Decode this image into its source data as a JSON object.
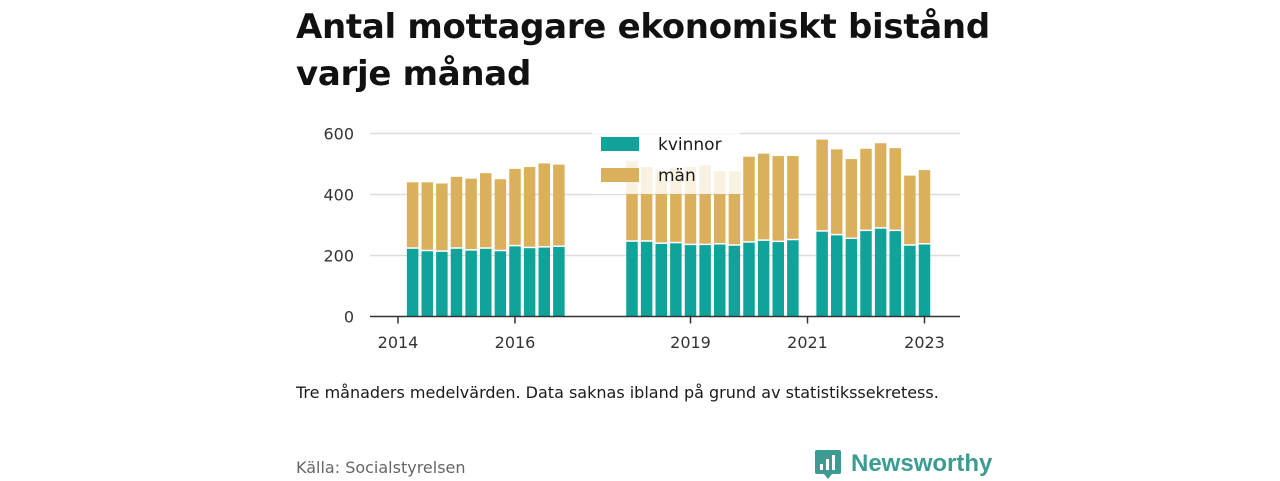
{
  "title": "Antal mottagare ekonomiskt bistånd varje månad",
  "note": "Tre månaders medelvärden. Data saknas ibland på grund av statistikssekretess.",
  "source": "Källa: Socialstyrelsen",
  "brand": "Newsworthy",
  "colors": {
    "kvinnor": "#0fa39a",
    "man": "#dbb05c",
    "brand": "#3d9c91",
    "grid": "#dddddd",
    "axis": "#333333"
  },
  "chart_data": {
    "type": "bar",
    "stacked": true,
    "ylim": [
      0,
      600
    ],
    "yticks": [
      0,
      200,
      400,
      600
    ],
    "xticks": [
      {
        "label": "2014",
        "x": 2014.0
      },
      {
        "label": "2016",
        "x": 2016.0
      },
      {
        "label": "2019",
        "x": 2019.0
      },
      {
        "label": "2021",
        "x": 2021.0
      },
      {
        "label": "2023",
        "x": 2023.0
      }
    ],
    "x": [
      2014.25,
      2014.5,
      2014.75,
      2015.0,
      2015.25,
      2015.5,
      2015.75,
      2016.0,
      2016.25,
      2016.5,
      2016.75,
      2018.0,
      2018.25,
      2018.5,
      2018.75,
      2019.0,
      2019.25,
      2019.5,
      2019.75,
      2020.0,
      2020.25,
      2020.5,
      2020.75,
      2021.25,
      2021.5,
      2021.75,
      2022.0,
      2022.25,
      2022.5,
      2022.75,
      2023.0
    ],
    "legend_position": "top-center",
    "series": [
      {
        "name": "kvinnor",
        "values": [
          222,
          214,
          212,
          222,
          216,
          222,
          214,
          230,
          224,
          226,
          228,
          245,
          245,
          238,
          240,
          234,
          234,
          236,
          232,
          242,
          248,
          244,
          250,
          278,
          266,
          254,
          280,
          288,
          280,
          232,
          236
        ]
      },
      {
        "name": "män",
        "values": [
          218,
          226,
          224,
          236,
          236,
          248,
          236,
          254,
          266,
          276,
          270,
          265,
          245,
          238,
          248,
          256,
          262,
          240,
          244,
          282,
          286,
          282,
          276,
          302,
          282,
          262,
          270,
          280,
          272,
          230,
          244
        ]
      }
    ]
  }
}
